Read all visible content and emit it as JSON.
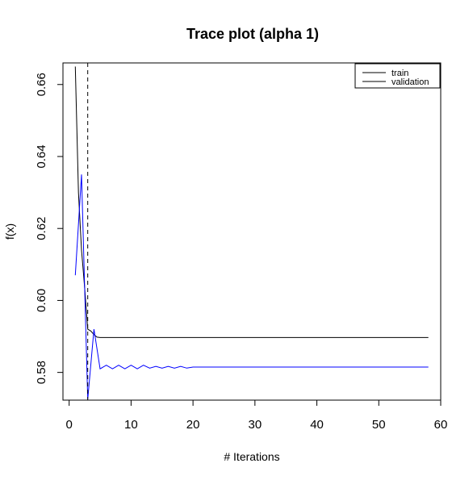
{
  "chart_data": {
    "type": "line",
    "title": "Trace plot (alpha 1)",
    "xlabel": "# Iterations",
    "ylabel": "f(x)",
    "xlim": [
      -1,
      60
    ],
    "ylim": [
      0.5723,
      0.666
    ],
    "xticks": [
      0,
      10,
      20,
      30,
      40,
      50,
      60
    ],
    "yticks": [
      0.58,
      0.6,
      0.62,
      0.64,
      0.66
    ],
    "ytick_labels": [
      "0.58",
      "0.60",
      "0.62",
      "0.64",
      "0.66"
    ],
    "vline": {
      "x": 3,
      "style": "dashed"
    },
    "legend": {
      "position": "top-right",
      "entries": [
        "train",
        "validation"
      ]
    },
    "grid": false,
    "series": [
      {
        "name": "train",
        "color": "#000000",
        "x": [
          1,
          1.5,
          2,
          2.5,
          3,
          3.5,
          4,
          4.5,
          5,
          58
        ],
        "y": [
          0.665,
          0.63,
          0.614,
          0.6035,
          0.592,
          0.5915,
          0.5905,
          0.5898,
          0.5897,
          0.5897
        ]
      },
      {
        "name": "validation",
        "color": "#0000ff",
        "x": [
          1,
          2,
          3,
          4,
          5,
          6,
          7,
          8,
          9,
          10,
          11,
          12,
          13,
          14,
          15,
          16,
          17,
          18,
          19,
          20,
          21,
          58
        ],
        "y": [
          0.607,
          0.635,
          0.5725,
          0.592,
          0.581,
          0.582,
          0.581,
          0.582,
          0.581,
          0.582,
          0.581,
          0.582,
          0.5812,
          0.5817,
          0.5812,
          0.5817,
          0.5812,
          0.5817,
          0.5812,
          0.5815,
          0.5815,
          0.5815
        ]
      }
    ]
  }
}
